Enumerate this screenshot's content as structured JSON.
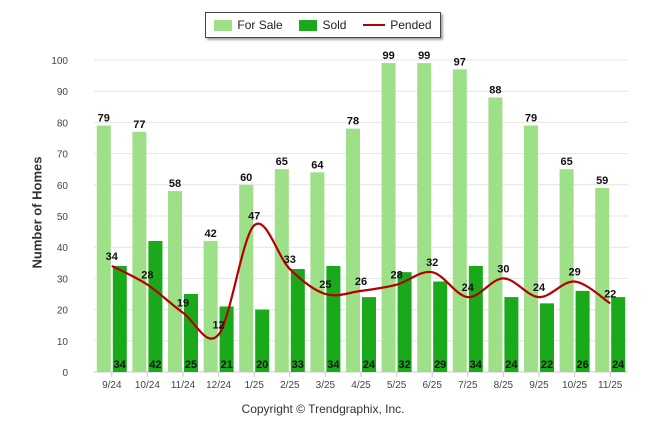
{
  "legend": {
    "for_sale": "For Sale",
    "sold": "Sold",
    "pended": "Pended"
  },
  "colors": {
    "for_sale": "#9ee087",
    "sold": "#1aa91a",
    "pended": "#b30000"
  },
  "copyright": "Copyright © Trendgraphix, Inc.",
  "chart_data": {
    "type": "bar",
    "title": "",
    "xlabel": "",
    "ylabel": "Number of Homes",
    "ylim": [
      0,
      100
    ],
    "yticks": [
      0,
      10,
      20,
      30,
      40,
      50,
      60,
      70,
      80,
      90,
      100
    ],
    "grid": true,
    "legend_position": "top-center",
    "categories": [
      "9/24",
      "10/24",
      "11/24",
      "12/24",
      "1/25",
      "2/25",
      "3/25",
      "4/25",
      "5/25",
      "6/25",
      "7/25",
      "8/25",
      "9/25",
      "10/25",
      "11/25"
    ],
    "series": [
      {
        "name": "For Sale",
        "type": "bar",
        "values": [
          79,
          77,
          58,
          42,
          60,
          65,
          64,
          78,
          99,
          99,
          97,
          88,
          79,
          65,
          59
        ]
      },
      {
        "name": "Sold",
        "type": "bar",
        "values": [
          34,
          42,
          25,
          21,
          20,
          33,
          34,
          24,
          32,
          29,
          34,
          24,
          22,
          26,
          24
        ]
      },
      {
        "name": "Pended",
        "type": "line",
        "values": [
          34,
          28,
          19,
          12,
          47,
          33,
          25,
          26,
          28,
          32,
          24,
          30,
          24,
          29,
          22
        ]
      }
    ]
  }
}
